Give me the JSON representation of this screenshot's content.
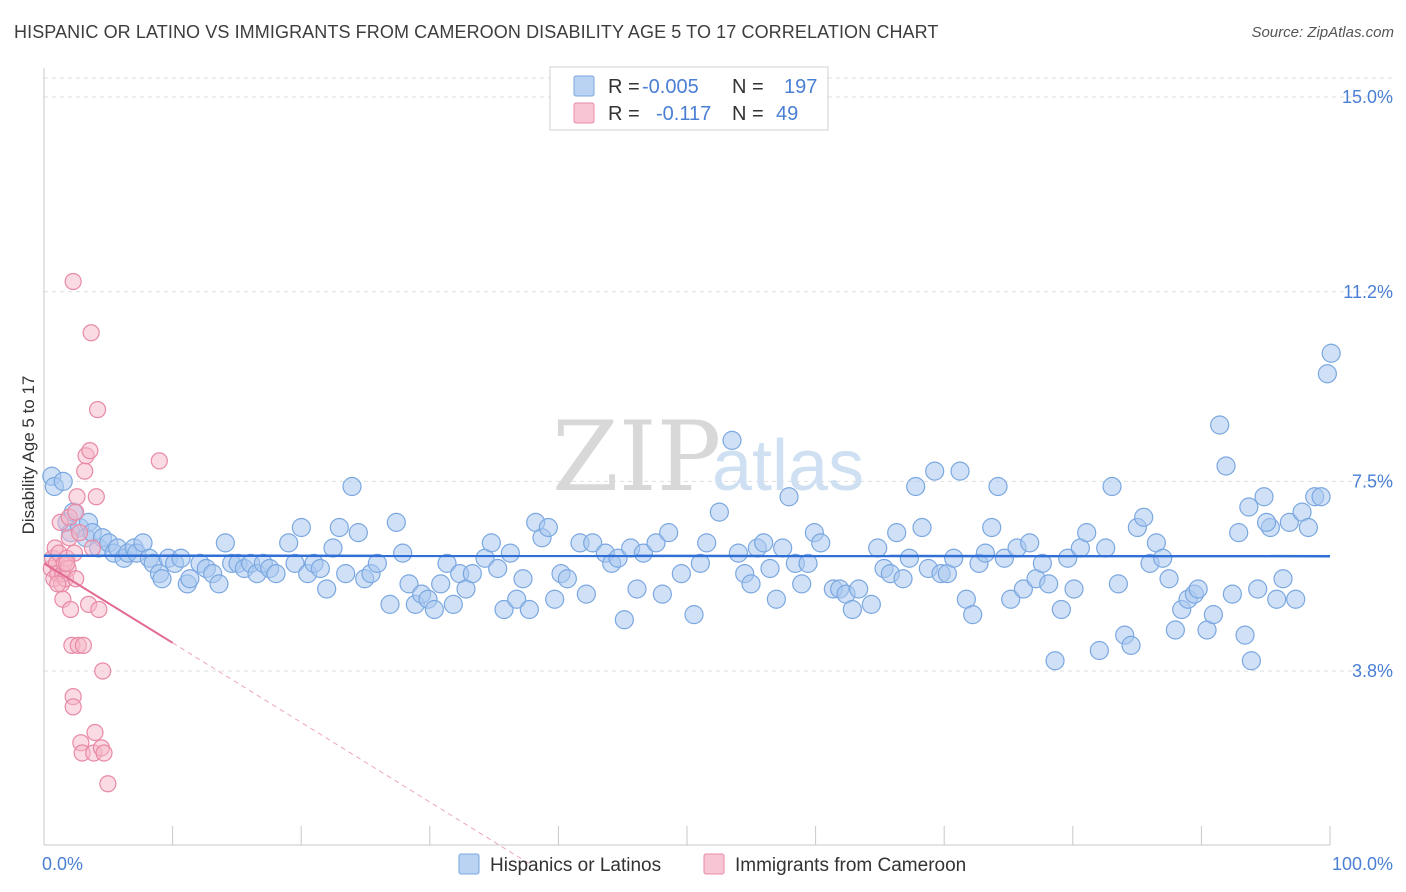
{
  "header": {
    "title": "HISPANIC OR LATINO VS IMMIGRANTS FROM CAMEROON DISABILITY AGE 5 TO 17 CORRELATION CHART",
    "source": "Source: ZipAtlas.com"
  },
  "watermark": {
    "zip": "ZIP",
    "atlas": "atlas"
  },
  "legend": {
    "rows": [
      {
        "r_label": "R =",
        "r_value": "-0.005",
        "n_label": "N =",
        "n_value": "197",
        "color": "#a9c8f0"
      },
      {
        "r_label": "R =",
        "r_value": "-0.117",
        "n_label": "N =",
        "n_value": "49",
        "color": "#f5b6c8"
      }
    ]
  },
  "chart_data": {
    "type": "scatter",
    "title": "HISPANIC OR LATINO VS IMMIGRANTS FROM CAMEROON DISABILITY AGE 5 TO 17 CORRELATION CHART",
    "xlabel": "",
    "ylabel": "Disability Age 5 to 17",
    "xlim": [
      0,
      100
    ],
    "ylim": [
      0,
      15.5
    ],
    "x_tick_labels": [
      "0.0%",
      "100.0%"
    ],
    "y_ticks": [
      3.8,
      7.5,
      11.2,
      15.0
    ],
    "y_tick_labels": [
      "3.8%",
      "7.5%",
      "11.2%",
      "15.0%"
    ],
    "grid": true,
    "legend_position": "top-center",
    "series": [
      {
        "name": "Hispanics or Latinos",
        "color": "#a9c8f0",
        "stroke": "#7aa7e0",
        "trend": {
          "x": [
            0,
            100
          ],
          "y": [
            6.05,
            6.04
          ],
          "color": "#2f6fd6"
        },
        "points": [
          [
            0.3,
            7.6
          ],
          [
            0.5,
            7.4
          ],
          [
            1.2,
            7.5
          ],
          [
            1.5,
            6.7
          ],
          [
            1.8,
            6.5
          ],
          [
            2.0,
            6.9
          ],
          [
            2.5,
            6.6
          ],
          [
            3.0,
            6.4
          ],
          [
            3.2,
            6.7
          ],
          [
            3.5,
            6.5
          ],
          [
            4.0,
            6.2
          ],
          [
            4.3,
            6.4
          ],
          [
            4.8,
            6.3
          ],
          [
            5.2,
            6.1
          ],
          [
            5.5,
            6.2
          ],
          [
            6.0,
            6.0
          ],
          [
            6.3,
            6.1
          ],
          [
            6.8,
            6.2
          ],
          [
            7.0,
            6.1
          ],
          [
            7.5,
            6.3
          ],
          [
            8.0,
            6.0
          ],
          [
            8.3,
            5.9
          ],
          [
            8.8,
            5.7
          ],
          [
            9.0,
            5.6
          ],
          [
            9.5,
            6.0
          ],
          [
            10.0,
            5.9
          ],
          [
            10.5,
            6.0
          ],
          [
            11.0,
            5.5
          ],
          [
            11.2,
            5.6
          ],
          [
            12.0,
            5.9
          ],
          [
            12.5,
            5.8
          ],
          [
            13.0,
            5.7
          ],
          [
            13.5,
            5.5
          ],
          [
            14.0,
            6.3
          ],
          [
            14.5,
            5.9
          ],
          [
            15.0,
            5.9
          ],
          [
            15.5,
            5.8
          ],
          [
            16.0,
            5.9
          ],
          [
            16.5,
            5.7
          ],
          [
            17.0,
            5.9
          ],
          [
            17.5,
            5.8
          ],
          [
            18.0,
            5.7
          ],
          [
            19.0,
            6.3
          ],
          [
            19.5,
            5.9
          ],
          [
            20.0,
            6.6
          ],
          [
            20.5,
            5.7
          ],
          [
            21.0,
            5.9
          ],
          [
            21.5,
            5.8
          ],
          [
            22.0,
            5.4
          ],
          [
            22.5,
            6.2
          ],
          [
            23.0,
            6.6
          ],
          [
            23.5,
            5.7
          ],
          [
            24.0,
            7.4
          ],
          [
            24.5,
            6.5
          ],
          [
            25.0,
            5.6
          ],
          [
            25.5,
            5.7
          ],
          [
            26.0,
            5.9
          ],
          [
            27.0,
            5.1
          ],
          [
            27.5,
            6.7
          ],
          [
            28.0,
            6.1
          ],
          [
            28.5,
            5.5
          ],
          [
            29.0,
            5.1
          ],
          [
            29.5,
            5.3
          ],
          [
            30.0,
            5.2
          ],
          [
            30.5,
            5.0
          ],
          [
            31.0,
            5.5
          ],
          [
            31.5,
            5.9
          ],
          [
            32.0,
            5.1
          ],
          [
            32.5,
            5.7
          ],
          [
            33.0,
            5.4
          ],
          [
            33.5,
            5.7
          ],
          [
            34.5,
            6.0
          ],
          [
            35.0,
            6.3
          ],
          [
            35.5,
            5.8
          ],
          [
            36.0,
            5.0
          ],
          [
            36.5,
            6.1
          ],
          [
            37.0,
            5.2
          ],
          [
            37.5,
            5.6
          ],
          [
            38.0,
            5.0
          ],
          [
            38.5,
            6.7
          ],
          [
            39.0,
            6.4
          ],
          [
            39.5,
            6.6
          ],
          [
            40.0,
            5.2
          ],
          [
            40.5,
            5.7
          ],
          [
            41.0,
            5.6
          ],
          [
            42.0,
            6.3
          ],
          [
            42.5,
            5.3
          ],
          [
            43.0,
            6.3
          ],
          [
            44.0,
            6.1
          ],
          [
            44.5,
            5.9
          ],
          [
            45.0,
            6.0
          ],
          [
            45.5,
            4.8
          ],
          [
            46.0,
            6.2
          ],
          [
            46.5,
            5.4
          ],
          [
            47.0,
            6.1
          ],
          [
            48.0,
            6.3
          ],
          [
            48.5,
            5.3
          ],
          [
            49.0,
            6.5
          ],
          [
            50.0,
            5.7
          ],
          [
            51.0,
            4.9
          ],
          [
            51.5,
            5.9
          ],
          [
            52.0,
            6.3
          ],
          [
            53.0,
            6.9
          ],
          [
            54.0,
            8.3
          ],
          [
            54.5,
            6.1
          ],
          [
            55.0,
            5.7
          ],
          [
            55.5,
            5.5
          ],
          [
            56.0,
            6.2
          ],
          [
            56.5,
            6.3
          ],
          [
            57.0,
            5.8
          ],
          [
            57.5,
            5.2
          ],
          [
            58.0,
            6.2
          ],
          [
            58.5,
            7.2
          ],
          [
            59.0,
            5.9
          ],
          [
            59.5,
            5.5
          ],
          [
            60.0,
            5.9
          ],
          [
            60.5,
            6.5
          ],
          [
            61.0,
            6.3
          ],
          [
            62.0,
            5.4
          ],
          [
            62.5,
            5.4
          ],
          [
            63.0,
            5.3
          ],
          [
            63.5,
            5.0
          ],
          [
            64.0,
            5.4
          ],
          [
            65.0,
            5.1
          ],
          [
            65.5,
            6.2
          ],
          [
            66.0,
            5.8
          ],
          [
            66.5,
            5.7
          ],
          [
            67.0,
            6.5
          ],
          [
            67.5,
            5.6
          ],
          [
            68.0,
            6.0
          ],
          [
            68.5,
            7.4
          ],
          [
            69.0,
            6.6
          ],
          [
            69.5,
            5.8
          ],
          [
            70.0,
            7.7
          ],
          [
            70.5,
            5.7
          ],
          [
            71.0,
            5.7
          ],
          [
            71.5,
            6.0
          ],
          [
            72.0,
            7.7
          ],
          [
            72.5,
            5.2
          ],
          [
            73.0,
            4.9
          ],
          [
            73.5,
            5.9
          ],
          [
            74.0,
            6.1
          ],
          [
            74.5,
            6.6
          ],
          [
            75.0,
            7.4
          ],
          [
            75.5,
            6.0
          ],
          [
            76.0,
            5.2
          ],
          [
            76.5,
            6.2
          ],
          [
            77.0,
            5.4
          ],
          [
            77.5,
            6.3
          ],
          [
            78.0,
            5.6
          ],
          [
            78.5,
            5.9
          ],
          [
            79.0,
            5.5
          ],
          [
            79.5,
            4.0
          ],
          [
            80.0,
            5.0
          ],
          [
            80.5,
            6.0
          ],
          [
            81.0,
            5.4
          ],
          [
            81.5,
            6.2
          ],
          [
            82.0,
            6.5
          ],
          [
            83.0,
            4.2
          ],
          [
            83.5,
            6.2
          ],
          [
            84.0,
            7.4
          ],
          [
            84.5,
            5.5
          ],
          [
            85.0,
            4.5
          ],
          [
            85.5,
            4.3
          ],
          [
            86.0,
            6.6
          ],
          [
            86.5,
            6.8
          ],
          [
            87.0,
            5.9
          ],
          [
            87.5,
            6.3
          ],
          [
            88.0,
            6.0
          ],
          [
            88.5,
            5.6
          ],
          [
            89.0,
            4.6
          ],
          [
            89.5,
            5.0
          ],
          [
            90.0,
            5.2
          ],
          [
            90.5,
            5.3
          ],
          [
            90.8,
            5.4
          ],
          [
            91.5,
            4.6
          ],
          [
            92.0,
            4.9
          ],
          [
            92.5,
            8.6
          ],
          [
            93.0,
            7.8
          ],
          [
            93.5,
            5.3
          ],
          [
            94.0,
            6.5
          ],
          [
            94.5,
            4.5
          ],
          [
            95.0,
            4.0
          ],
          [
            95.5,
            5.4
          ],
          [
            96.0,
            7.2
          ],
          [
            96.5,
            6.6
          ],
          [
            97.0,
            5.2
          ],
          [
            97.5,
            5.6
          ],
          [
            98.0,
            6.7
          ],
          [
            98.5,
            5.2
          ],
          [
            99.0,
            6.9
          ],
          [
            99.5,
            6.6
          ],
          [
            100.0,
            7.2
          ],
          [
            100.5,
            7.2
          ],
          [
            101.0,
            9.6
          ],
          [
            101.3,
            10.0
          ],
          [
            96.2,
            6.7
          ],
          [
            94.8,
            7.0
          ]
        ]
      },
      {
        "name": "Immigrants from Cameroon",
        "color": "#f5b6c8",
        "stroke": "#e88aa5",
        "trend": {
          "x": [
            0,
            10
          ],
          "y": [
            5.9,
            4.35
          ],
          "dashed_to": [
            38,
            0
          ],
          "color": "#e36a93"
        },
        "points": [
          [
            0.1,
            5.8
          ],
          [
            0.2,
            6.0
          ],
          [
            0.3,
            5.6
          ],
          [
            0.4,
            6.2
          ],
          [
            0.5,
            5.9
          ],
          [
            0.6,
            5.7
          ],
          [
            0.7,
            6.1
          ],
          [
            0.8,
            6.7
          ],
          [
            0.9,
            5.5
          ],
          [
            1.0,
            5.7
          ],
          [
            1.0,
            5.2
          ],
          [
            1.1,
            5.9
          ],
          [
            1.2,
            5.6
          ],
          [
            1.3,
            6.0
          ],
          [
            1.4,
            5.8
          ],
          [
            1.5,
            6.4
          ],
          [
            1.5,
            6.8
          ],
          [
            1.6,
            5.0
          ],
          [
            1.7,
            4.3
          ],
          [
            1.8,
            3.3
          ],
          [
            1.8,
            3.1
          ],
          [
            1.9,
            6.1
          ],
          [
            2.0,
            5.6
          ],
          [
            2.0,
            6.9
          ],
          [
            2.1,
            7.2
          ],
          [
            2.2,
            4.3
          ],
          [
            2.3,
            6.5
          ],
          [
            2.4,
            2.4
          ],
          [
            2.5,
            2.2
          ],
          [
            2.6,
            4.3
          ],
          [
            2.7,
            7.7
          ],
          [
            2.8,
            8.0
          ],
          [
            3.0,
            5.1
          ],
          [
            3.1,
            8.1
          ],
          [
            3.2,
            10.4
          ],
          [
            3.3,
            6.2
          ],
          [
            3.4,
            2.2
          ],
          [
            3.5,
            2.6
          ],
          [
            3.6,
            7.2
          ],
          [
            3.7,
            8.9
          ],
          [
            3.8,
            5.0
          ],
          [
            4.0,
            2.3
          ],
          [
            4.1,
            3.8
          ],
          [
            4.2,
            2.2
          ],
          [
            4.5,
            1.6
          ],
          [
            8.5,
            7.9
          ],
          [
            1.8,
            11.4
          ],
          [
            0.6,
            5.5
          ],
          [
            1.3,
            5.9
          ]
        ]
      }
    ]
  },
  "bottom_legend": {
    "items": [
      {
        "label": "Hispanics or Latinos",
        "color": "#a9c8f0"
      },
      {
        "label": "Immigrants from Cameroon",
        "color": "#f5b6c8"
      }
    ]
  }
}
